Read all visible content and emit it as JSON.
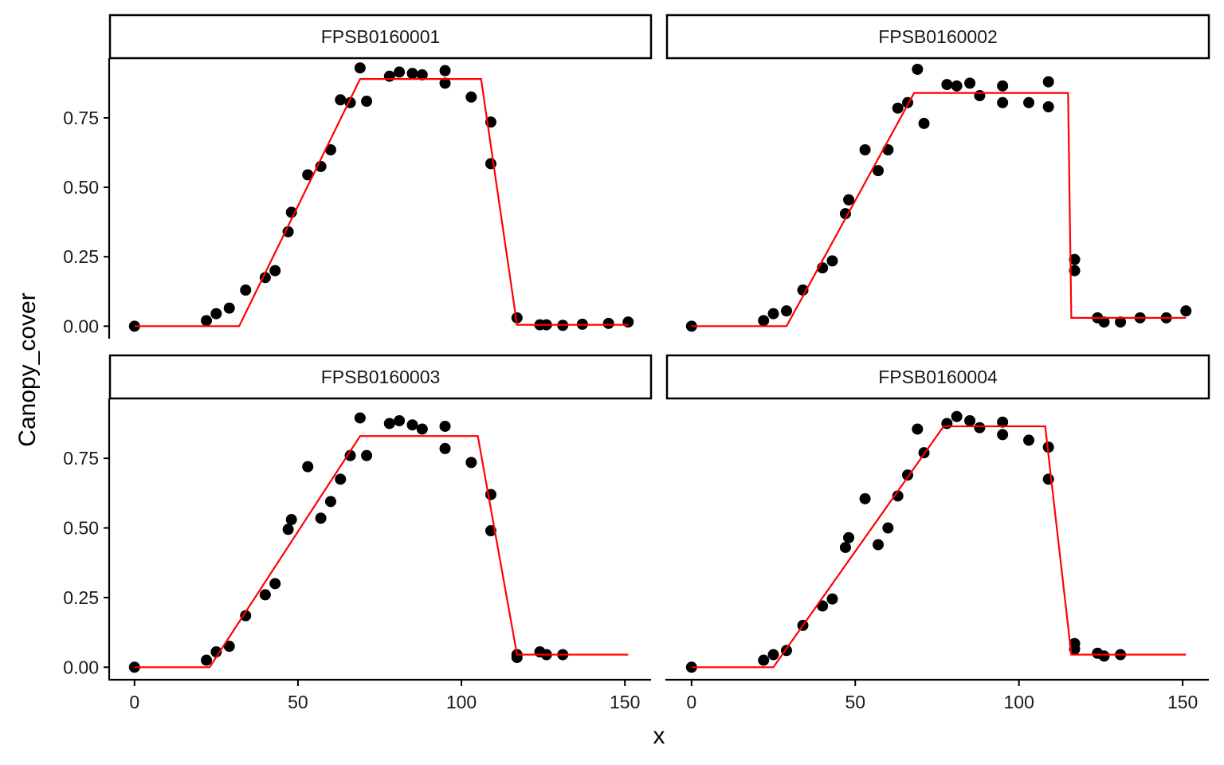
{
  "chart_data": {
    "type": "scatter",
    "facet_layout": "2x2",
    "xlabel": "x",
    "ylabel": "Canopy_cover",
    "xlim": [
      -7.5,
      158
    ],
    "ylim": [
      -0.045,
      0.965
    ],
    "x_ticks": [
      0,
      50,
      100,
      150
    ],
    "x_tick_labels": [
      "0",
      "50",
      "100",
      "150"
    ],
    "y_ticks": [
      0,
      0.25,
      0.5,
      0.75
    ],
    "y_tick_labels": [
      "0.00",
      "0.25",
      "0.50",
      "0.75"
    ],
    "grid": false,
    "legend": "none",
    "colors": {
      "points": "#000000",
      "fit_line": "#ff0000",
      "axis": "#000000",
      "strip_border": "#000000"
    },
    "panels": [
      {
        "label": "FPSB0160001",
        "points": {
          "x": [
            0,
            22,
            25,
            29,
            34,
            40,
            43,
            47,
            48,
            53,
            57,
            60,
            63,
            66,
            69,
            71,
            78,
            81,
            85,
            88,
            95,
            95,
            103,
            109,
            109,
            117,
            124,
            126,
            131,
            137,
            145,
            151
          ],
          "y": [
            0.0,
            0.02,
            0.045,
            0.065,
            0.13,
            0.175,
            0.2,
            0.34,
            0.41,
            0.545,
            0.575,
            0.635,
            0.815,
            0.805,
            0.93,
            0.81,
            0.9,
            0.915,
            0.91,
            0.905,
            0.92,
            0.875,
            0.825,
            0.735,
            0.585,
            0.03,
            0.005,
            0.005,
            0.003,
            0.007,
            0.01,
            0.015
          ]
        },
        "fit": {
          "x": [
            0,
            32,
            69,
            106,
            117,
            151
          ],
          "y": [
            0.0,
            0.0,
            0.89,
            0.89,
            0.005,
            0.005
          ]
        }
      },
      {
        "label": "FPSB0160002",
        "points": {
          "x": [
            0,
            22,
            25,
            29,
            34,
            40,
            43,
            47,
            48,
            53,
            57,
            60,
            63,
            66,
            69,
            71,
            78,
            81,
            85,
            88,
            95,
            95,
            103,
            109,
            109,
            117,
            117,
            124,
            126,
            131,
            137,
            145,
            151
          ],
          "y": [
            0.0,
            0.02,
            0.045,
            0.055,
            0.13,
            0.21,
            0.235,
            0.405,
            0.455,
            0.635,
            0.56,
            0.635,
            0.785,
            0.805,
            0.925,
            0.73,
            0.87,
            0.865,
            0.875,
            0.83,
            0.865,
            0.805,
            0.805,
            0.79,
            0.88,
            0.24,
            0.2,
            0.03,
            0.015,
            0.015,
            0.03,
            0.03,
            0.055
          ]
        },
        "fit": {
          "x": [
            0,
            29,
            68,
            115,
            116,
            151
          ],
          "y": [
            0.0,
            0.0,
            0.84,
            0.84,
            0.03,
            0.03
          ]
        }
      },
      {
        "label": "FPSB0160003",
        "points": {
          "x": [
            0,
            22,
            25,
            29,
            34,
            40,
            43,
            47,
            48,
            53,
            57,
            60,
            63,
            66,
            69,
            71,
            78,
            81,
            85,
            88,
            95,
            95,
            103,
            109,
            109,
            117,
            117,
            124,
            126,
            131
          ],
          "y": [
            0.0,
            0.025,
            0.055,
            0.075,
            0.185,
            0.26,
            0.3,
            0.495,
            0.53,
            0.72,
            0.535,
            0.595,
            0.675,
            0.76,
            0.895,
            0.76,
            0.875,
            0.885,
            0.87,
            0.855,
            0.865,
            0.785,
            0.735,
            0.62,
            0.49,
            0.045,
            0.035,
            0.055,
            0.045,
            0.045
          ]
        },
        "fit": {
          "x": [
            0,
            23,
            69,
            105,
            117,
            151
          ],
          "y": [
            0.0,
            0.0,
            0.83,
            0.83,
            0.045,
            0.045
          ]
        }
      },
      {
        "label": "FPSB0160004",
        "points": {
          "x": [
            0,
            22,
            25,
            29,
            34,
            40,
            43,
            47,
            48,
            53,
            57,
            60,
            63,
            66,
            69,
            71,
            78,
            81,
            85,
            88,
            95,
            95,
            103,
            109,
            109,
            117,
            117,
            124,
            126,
            131
          ],
          "y": [
            0.0,
            0.025,
            0.045,
            0.06,
            0.15,
            0.22,
            0.245,
            0.43,
            0.465,
            0.605,
            0.44,
            0.5,
            0.615,
            0.69,
            0.855,
            0.77,
            0.875,
            0.9,
            0.885,
            0.86,
            0.88,
            0.835,
            0.815,
            0.79,
            0.675,
            0.085,
            0.065,
            0.05,
            0.04,
            0.045
          ]
        },
        "fit": {
          "x": [
            0,
            25,
            77,
            108,
            116,
            151
          ],
          "y": [
            0.0,
            0.0,
            0.865,
            0.865,
            0.045,
            0.045
          ]
        }
      }
    ]
  }
}
